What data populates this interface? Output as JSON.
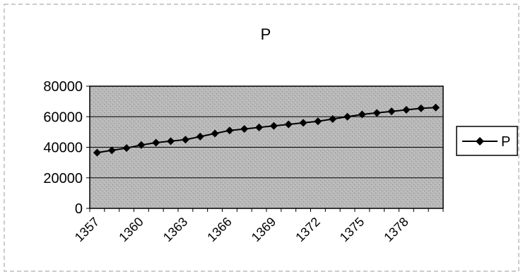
{
  "chart_data": {
    "type": "line",
    "title": "P",
    "xlabel": "",
    "ylabel": "",
    "x": [
      1357,
      1358,
      1359,
      1360,
      1361,
      1362,
      1363,
      1364,
      1365,
      1366,
      1367,
      1368,
      1369,
      1370,
      1371,
      1372,
      1373,
      1374,
      1375,
      1376,
      1377,
      1378,
      1379,
      1380
    ],
    "x_tick_labels": [
      "1357",
      "1360",
      "1363",
      "1366",
      "1369",
      "1372",
      "1375",
      "1378"
    ],
    "ylim": [
      0,
      80000
    ],
    "y_ticks": [
      "80000",
      "60000",
      "40000",
      "20000",
      "0"
    ],
    "grid": true,
    "legend_position": "right",
    "series": [
      {
        "name": "P",
        "color": "#000000",
        "marker": "diamond",
        "values": [
          36500,
          38000,
          39500,
          41500,
          43000,
          44000,
          45000,
          47000,
          49000,
          51000,
          52000,
          53000,
          54000,
          55000,
          56000,
          57000,
          58500,
          60000,
          61500,
          62500,
          63500,
          64500,
          65500,
          66000
        ]
      }
    ]
  }
}
